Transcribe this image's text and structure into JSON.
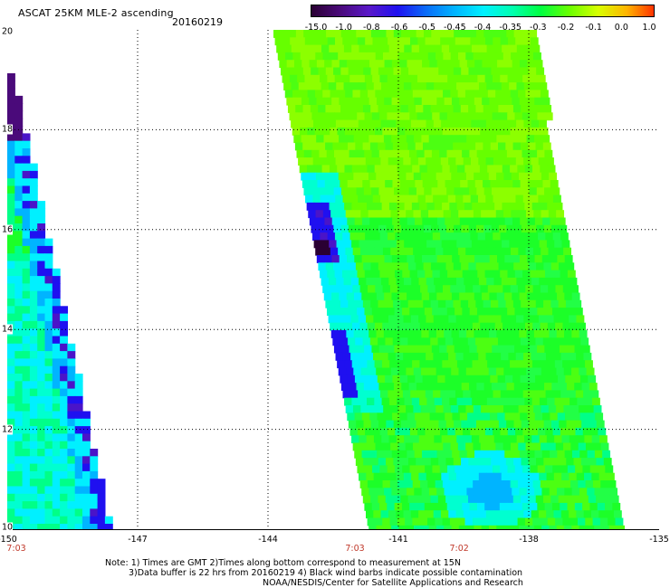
{
  "header": {
    "title": "ASCAT 25KM MLE-2 ascending",
    "date": "20160219"
  },
  "colorbar": {
    "labels": [
      "-15.0",
      "-1.0",
      "-0.8",
      "-0.6",
      "-0.5",
      "-0.45",
      "-0.4",
      "-0.35",
      "-0.3",
      "-0.2",
      "-0.1",
      "0.0",
      "1.0"
    ],
    "colors": [
      "#2a0033",
      "#4a0a7a",
      "#5a18c8",
      "#1f10f0",
      "#0a6cf8",
      "#00b4ff",
      "#00f0ff",
      "#00ffb0",
      "#00ff40",
      "#6aff00",
      "#d8ff00",
      "#ffb400",
      "#ff2a00"
    ]
  },
  "map": {
    "lat_labels": [
      "20",
      "18",
      "16",
      "14",
      "12",
      "10"
    ],
    "lon_labels": [
      "-150",
      "-147",
      "-144",
      "-141",
      "-138",
      "-135"
    ],
    "time_labels": [
      {
        "lon": -150,
        "text": "7:03"
      },
      {
        "lon": -142,
        "text": "7:03"
      },
      {
        "lon": -139.6,
        "text": "7:02"
      }
    ]
  },
  "notes": {
    "line1": "Note: 1) Times are GMT 2)Times along bottom correspond to measurement at 15N",
    "line2": "3)Data buffer is 22 hrs from 20160219 4) Black wind barbs indicate possible contamination",
    "line3": "NOAA/NESDIS/Center for Satellite Applications and Research"
  }
}
